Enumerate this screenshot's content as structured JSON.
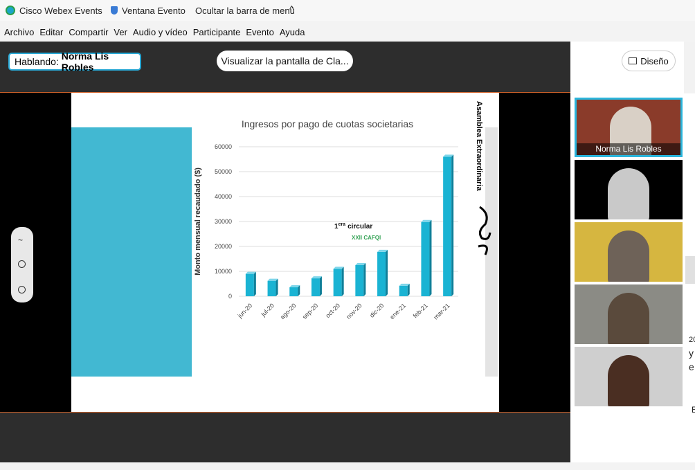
{
  "titlebar": {
    "app": "Cisco Webex Events",
    "window": "Ventana Evento",
    "hide_menu": "Ocultar la barra de menú"
  },
  "menu": [
    "Archivo",
    "Editar",
    "Compartir",
    "Ver",
    "Audio y vídeo",
    "Participante",
    "Evento",
    "Ayuda"
  ],
  "meeting": {
    "speaking_label": "Hablando:",
    "speaker": "Norma Lis Robles",
    "view_button": "Visualizar la pantalla de Cla...",
    "layout_button": "Diseño"
  },
  "slide": {
    "side_title": "Asamblea Extraordinaria",
    "chart": {
      "type": "bar",
      "title": "Ingresos por pago de cuotas societarias",
      "y_label": "Monto mensual recaudado ($)",
      "categories": [
        "jun-20",
        "jul-20",
        "ago-20",
        "sep-20",
        "oct-20",
        "nov-20",
        "dic-20",
        "ene-21",
        "feb-21",
        "mar-21"
      ],
      "values": [
        9000,
        6200,
        3600,
        7200,
        11000,
        12500,
        17800,
        4200,
        29800,
        56000
      ],
      "color": "#1ab3d3",
      "ylim": [
        0,
        60000
      ],
      "yticks": [
        0,
        10000,
        20000,
        30000,
        40000,
        50000,
        60000
      ],
      "grid": true,
      "annotation": {
        "number": "1",
        "suffix": "era",
        "text": "circular",
        "logo": "XXII CAFQI"
      }
    }
  },
  "participants": [
    {
      "name": "Norma Lis Robles"
    }
  ],
  "side_fragments": [
    "20",
    "y",
    "e",
    "E"
  ]
}
